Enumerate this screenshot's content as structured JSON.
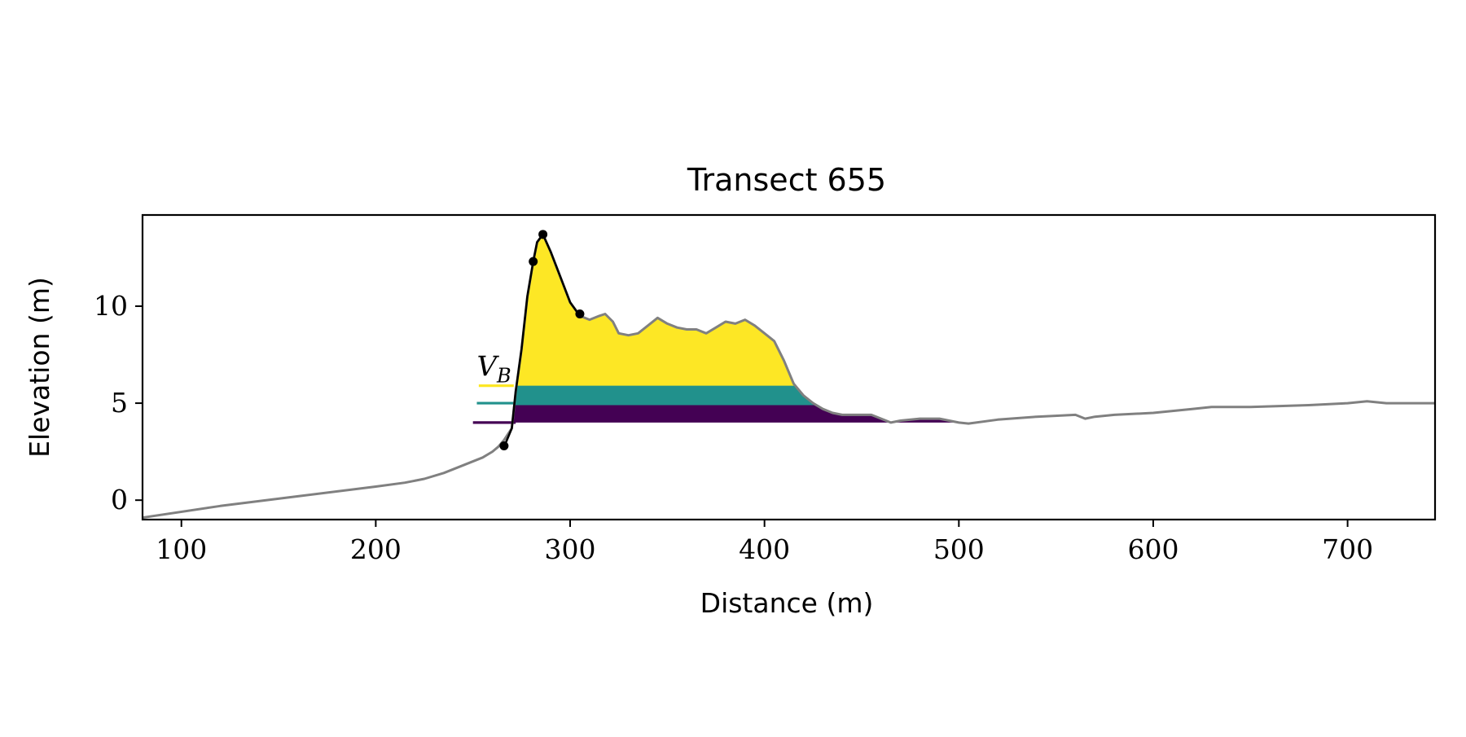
{
  "chart_data": {
    "type": "area",
    "title": "Transect 655",
    "xlabel": "Distance (m)",
    "ylabel": "Elevation (m)",
    "xlim": [
      80,
      745
    ],
    "ylim": [
      -1,
      14.7
    ],
    "xticks": [
      100,
      200,
      300,
      400,
      500,
      600,
      700
    ],
    "yticks": [
      0,
      5,
      10
    ],
    "xtick_labels": [
      "100",
      "200",
      "300",
      "400",
      "500",
      "600",
      "700"
    ],
    "ytick_labels": [
      "0",
      "5",
      "10"
    ],
    "grid": false,
    "legend": "none",
    "annotation": {
      "text": "V",
      "subscript": "B",
      "x": 252,
      "y": 6.4
    },
    "colors": {
      "profile": "#808080",
      "dune_face": "#000000",
      "volume_top": "#fde725",
      "volume_mid": "#21918c",
      "volume_low": "#440154"
    },
    "profile": {
      "x": [
        80,
        120,
        160,
        200,
        215,
        225,
        235,
        245,
        255,
        260,
        263,
        266,
        270,
        272,
        275,
        278,
        281,
        283,
        286,
        290,
        295,
        300,
        305,
        310,
        315,
        318,
        322,
        325,
        330,
        335,
        340,
        345,
        350,
        355,
        360,
        365,
        370,
        375,
        380,
        385,
        390,
        395,
        400,
        405,
        410,
        415,
        420,
        425,
        430,
        435,
        440,
        445,
        450,
        455,
        460,
        465,
        470,
        480,
        490,
        500,
        505,
        520,
        540,
        560,
        565,
        570,
        580,
        600,
        620,
        630,
        650,
        680,
        700,
        710,
        720,
        740,
        745
      ],
      "y": [
        -0.9,
        -0.3,
        0.2,
        0.7,
        0.9,
        1.1,
        1.4,
        1.8,
        2.2,
        2.5,
        2.75,
        3.1,
        3.7,
        5.6,
        7.8,
        10.5,
        12.3,
        13.3,
        13.7,
        12.8,
        11.5,
        10.2,
        9.5,
        9.3,
        9.5,
        9.6,
        9.2,
        8.6,
        8.5,
        8.6,
        9.0,
        9.4,
        9.1,
        8.9,
        8.8,
        8.8,
        8.6,
        8.9,
        9.2,
        9.1,
        9.3,
        9.0,
        8.6,
        8.2,
        7.2,
        6.0,
        5.4,
        5.0,
        4.7,
        4.5,
        4.4,
        4.4,
        4.4,
        4.4,
        4.2,
        4.0,
        4.1,
        4.2,
        4.2,
        4.0,
        3.95,
        4.15,
        4.3,
        4.4,
        4.2,
        4.3,
        4.4,
        4.5,
        4.7,
        4.8,
        4.8,
        4.9,
        5.0,
        5.1,
        5.0,
        5.0,
        5.0
      ]
    },
    "dune_face_line": {
      "x": [
        266,
        270,
        272,
        275,
        278,
        281,
        283,
        286,
        290,
        295,
        300,
        305
      ],
      "y": [
        2.75,
        3.7,
        5.6,
        7.8,
        10.5,
        12.3,
        13.3,
        13.7,
        12.8,
        11.5,
        10.2,
        9.5
      ]
    },
    "markers": {
      "x": [
        266,
        281,
        286,
        305
      ],
      "y": [
        2.8,
        12.3,
        13.7,
        9.6
      ]
    },
    "volume_bands": [
      {
        "name": "",
        "ref_y": 5.9,
        "floor": 5.9,
        "line_x": [
          253,
          271
        ],
        "fill_to_x": 426,
        "color": "#fde725"
      },
      {
        "name": "",
        "ref_y": 5.0,
        "floor": 4.9,
        "line_x": [
          252,
          271
        ],
        "fill_to_x": 445,
        "color": "#21918c"
      },
      {
        "name": "",
        "ref_y": 4.0,
        "floor": 4.0,
        "line_x": [
          250,
          272
        ],
        "fill_to_x": 505,
        "color": "#440154"
      }
    ]
  }
}
